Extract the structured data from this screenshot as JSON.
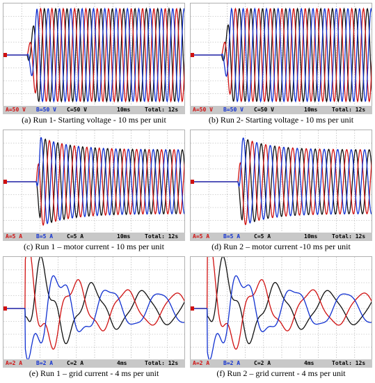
{
  "colors": {
    "a": "#d01010",
    "b": "#1030d0",
    "c": "#101010",
    "grid": "#a8a8a8",
    "status_bg": "#c8c8c8"
  },
  "panels": [
    {
      "caption": "(a) Run 1- Starting voltage - 10 ms per unit",
      "status": {
        "a": "A=50 V",
        "b": "B=50 V",
        "c": "C=50 V",
        "time": "10ms",
        "total": "Total: 12s"
      }
    },
    {
      "caption": "(b) Run 2- Starting voltage - 10 ms per unit",
      "status": {
        "a": "A=50 V",
        "b": "B=50 V",
        "c": "C=50 V",
        "time": "10ms",
        "total": "Total: 12s"
      }
    },
    {
      "caption": "(c) Run 1 – motor current - 10 ms per unit",
      "status": {
        "a": "A=5 A",
        "b": "B=5 A",
        "c": "C=5 A",
        "time": "10ms",
        "total": "Total: 12s"
      }
    },
    {
      "caption": "(d) Run 2 – motor current -10 ms per unit",
      "status": {
        "a": "A=5 A",
        "b": "B=5 A",
        "c": "C=5 A",
        "time": "10ms",
        "total": "Total: 12s"
      }
    },
    {
      "caption": "(e) Run 1 – grid current - 4 ms per unit",
      "status": {
        "a": "A=2 A",
        "b": "B=2 A",
        "c": "C=2 A",
        "time": "4ms",
        "total": "Total: 12s"
      }
    },
    {
      "caption": "(f) Run 2 – grid current - 4 ms per unit",
      "status": {
        "a": "A=2 A",
        "b": "B=2 A",
        "c": "C=2 A",
        "time": "4ms",
        "total": "Total: 12s"
      }
    }
  ],
  "chart_data": [
    {
      "type": "line",
      "title": "(a) Run 1- Starting voltage - 10 ms per unit",
      "waveform": "voltage-start",
      "ms_per_div": 10,
      "start_div": 1.3,
      "cycles": 14,
      "series": [
        {
          "name": "A=50 V"
        },
        {
          "name": "B=50 V"
        },
        {
          "name": "C=50 V"
        }
      ]
    },
    {
      "type": "line",
      "title": "(b) Run 2- Starting voltage - 10 ms per unit",
      "waveform": "voltage-start",
      "ms_per_div": 10,
      "start_div": 1.7,
      "cycles": 13,
      "series": [
        {
          "name": "A=50 V"
        },
        {
          "name": "B=50 V"
        },
        {
          "name": "C=50 V"
        }
      ]
    },
    {
      "type": "line",
      "title": "(c) Run 1 – motor current - 10 ms per unit",
      "waveform": "motor-current",
      "ms_per_div": 10,
      "start_div": 1.8,
      "cycles": 12,
      "series": [
        {
          "name": "A=5 A"
        },
        {
          "name": "B=5 A"
        },
        {
          "name": "C=5 A"
        }
      ]
    },
    {
      "type": "line",
      "title": "(d) Run 2 – motor current -10 ms per unit",
      "waveform": "motor-current",
      "ms_per_div": 10,
      "start_div": 2.6,
      "cycles": 10,
      "series": [
        {
          "name": "A=5 A"
        },
        {
          "name": "B=5 A"
        },
        {
          "name": "C=5 A"
        }
      ]
    },
    {
      "type": "line",
      "title": "(e) Run 1 – grid current - 4 ms per unit",
      "waveform": "grid-current",
      "ms_per_div": 4,
      "start_div": 1.2,
      "series": [
        {
          "name": "A=2 A"
        },
        {
          "name": "B=2 A"
        },
        {
          "name": "C=2 A"
        }
      ]
    },
    {
      "type": "line",
      "title": "(f) Run 2 – grid current - 4 ms per unit",
      "waveform": "grid-current",
      "ms_per_div": 4,
      "start_div": 0.9,
      "series": [
        {
          "name": "A=2 A"
        },
        {
          "name": "B=2 A"
        },
        {
          "name": "C=2 A"
        }
      ]
    }
  ]
}
